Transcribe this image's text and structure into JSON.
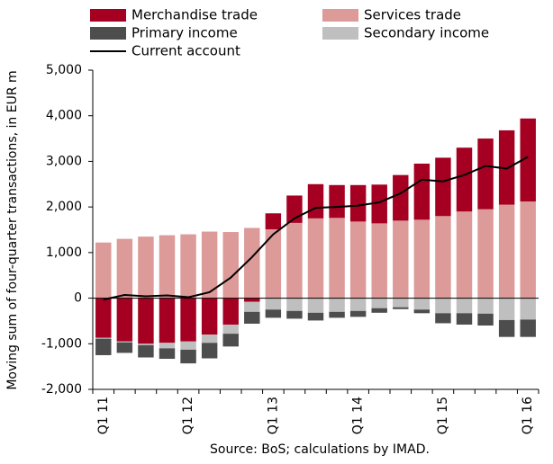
{
  "chart_data": {
    "type": "bar",
    "y_label": "Moving sum of four-quarter transactions, in EUR m",
    "source": "Source: BoS; calculations by IMAD.",
    "categories": [
      "Q1 11",
      null,
      null,
      null,
      "Q1 12",
      null,
      null,
      null,
      "Q1 13",
      null,
      null,
      null,
      "Q1 14",
      null,
      null,
      null,
      "Q1 15",
      null,
      null,
      null,
      "Q1 16"
    ],
    "series": [
      {
        "name": "Services trade",
        "color": "#dc9a98",
        "values": [
          1220,
          1300,
          1350,
          1380,
          1400,
          1460,
          1450,
          1540,
          1510,
          1650,
          1750,
          1760,
          1680,
          1640,
          1700,
          1720,
          1800,
          1900,
          1950,
          2050,
          2120
        ]
      },
      {
        "name": "Merchandise trade",
        "color": "#a50021",
        "values": [
          -870,
          -950,
          -1000,
          -980,
          -950,
          -800,
          -580,
          -80,
          350,
          600,
          750,
          720,
          800,
          850,
          1000,
          1230,
          1280,
          1400,
          1550,
          1630,
          1820
        ]
      },
      {
        "name": "Secondary income",
        "color": "#bfbfbf",
        "values": [
          -20,
          -20,
          -30,
          -120,
          -180,
          -180,
          -200,
          -220,
          -250,
          -280,
          -320,
          -300,
          -280,
          -220,
          -200,
          -250,
          -330,
          -330,
          -340,
          -480,
          -470
        ]
      },
      {
        "name": "Primary income",
        "color": "#4d4d4d",
        "values": [
          -360,
          -230,
          -270,
          -230,
          -300,
          -340,
          -280,
          -260,
          -180,
          -170,
          -170,
          -130,
          -130,
          -100,
          -40,
          -80,
          -220,
          -250,
          -260,
          -370,
          -380
        ]
      },
      {
        "name": "Current account",
        "color": "#000000",
        "line": true,
        "values": [
          -30,
          70,
          40,
          60,
          20,
          130,
          450,
          900,
          1400,
          1750,
          1980,
          2000,
          2030,
          2100,
          2300,
          2600,
          2560,
          2700,
          2900,
          2840,
          3100
        ]
      }
    ],
    "ylim": [
      -2000,
      5000
    ],
    "yticks": [
      {
        "value": -2000,
        "label": "-2,000"
      },
      {
        "value": -1000,
        "label": "-1,000"
      },
      0,
      {
        "value": 1000,
        "label": "1,000"
      },
      {
        "value": 2000,
        "label": "2,000"
      },
      {
        "value": 3000,
        "label": "3,000"
      },
      {
        "value": 4000,
        "label": "4,000"
      },
      {
        "value": 5000,
        "label": "5,000"
      }
    ]
  }
}
